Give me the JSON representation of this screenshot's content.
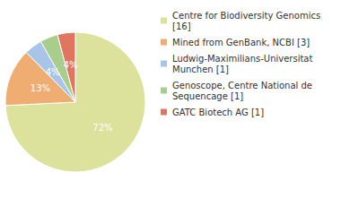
{
  "chart_data": {
    "type": "pie",
    "categories": [
      "Centre for Biodiversity Genomics [16]",
      "Mined from GenBank, NCBI [3]",
      "Ludwig-Maximilians-Universitat Munchen [1]",
      "Genoscope, Centre National de Sequencage [1]",
      "GATC Biotech AG [1]"
    ],
    "values": [
      72,
      13,
      4,
      4,
      4
    ],
    "value_labels": [
      "72%",
      "13%",
      "4%",
      "4%",
      "4%"
    ],
    "colors": [
      "#dce19c",
      "#f0ad72",
      "#a8c4e6",
      "#a9cd8c",
      "#e07660"
    ],
    "data_labels": true,
    "legend": "right"
  }
}
